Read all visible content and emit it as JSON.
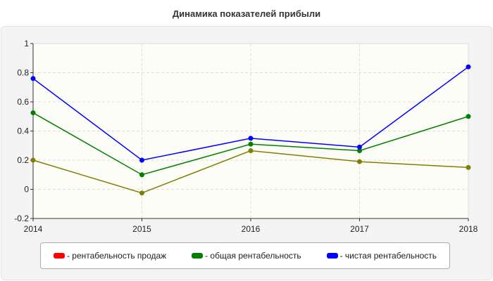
{
  "chart_data": {
    "type": "line",
    "title": "Динамика показателей прибыли",
    "categories": [
      "2014",
      "2015",
      "2016",
      "2017",
      "2018"
    ],
    "ylim": [
      -0.2,
      1
    ],
    "yticks": [
      "-0.2",
      "0",
      "0.2",
      "0.4",
      "0.6",
      "0.8",
      "1"
    ],
    "grid": true,
    "legend_position": "bottom",
    "series": [
      {
        "name": "- рентабельность продаж",
        "color": "#ff0000",
        "line_color": "#808000",
        "values": [
          0.2,
          -0.025,
          0.265,
          0.19,
          0.15
        ]
      },
      {
        "name": "- общая рентабельность",
        "color": "#008000",
        "values": [
          0.525,
          0.1,
          0.31,
          0.265,
          0.5
        ]
      },
      {
        "name": "- чистая рентабельность",
        "color": "#0000ff",
        "values": [
          0.76,
          0.2,
          0.35,
          0.29,
          0.84
        ]
      }
    ]
  }
}
